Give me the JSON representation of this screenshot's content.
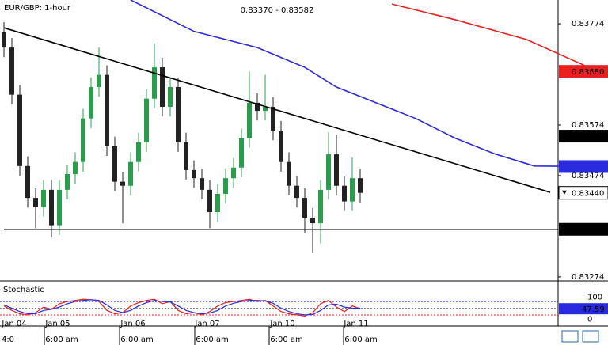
{
  "chart_data": {
    "type": "candlestick",
    "title": "EUR/GBP: 1-hour",
    "subtitle": "0.83370 - 0.83582",
    "ylim": [
      0.83266,
      0.83821
    ],
    "yticks": [
      0.83774,
      0.83574,
      0.83474,
      0.83274
    ],
    "up_color": "#2a9d4b",
    "down_color": "#222222",
    "candles": [
      [
        0.83758,
        0.83777,
        0.83708,
        0.83727
      ],
      [
        0.83727,
        0.83746,
        0.83615,
        0.83634
      ],
      [
        0.83634,
        0.83653,
        0.83474,
        0.83493
      ],
      [
        0.83493,
        0.83512,
        0.83411,
        0.8343
      ],
      [
        0.8343,
        0.83449,
        0.8337,
        0.83412
      ],
      [
        0.83412,
        0.83465,
        0.83393,
        0.83446
      ],
      [
        0.83446,
        0.83465,
        0.83352,
        0.83376
      ],
      [
        0.83376,
        0.83465,
        0.83357,
        0.83446
      ],
      [
        0.83446,
        0.83496,
        0.83427,
        0.83477
      ],
      [
        0.83477,
        0.8352,
        0.83458,
        0.83501
      ],
      [
        0.83501,
        0.83606,
        0.83482,
        0.83587
      ],
      [
        0.83587,
        0.83668,
        0.83568,
        0.83649
      ],
      [
        0.83649,
        0.83727,
        0.8363,
        0.83673
      ],
      [
        0.83673,
        0.83692,
        0.83513,
        0.83532
      ],
      [
        0.83532,
        0.83551,
        0.83443,
        0.83462
      ],
      [
        0.83462,
        0.83481,
        0.8338,
        0.83454
      ],
      [
        0.83454,
        0.8352,
        0.83435,
        0.83501
      ],
      [
        0.83501,
        0.83559,
        0.83482,
        0.8354
      ],
      [
        0.8354,
        0.83645,
        0.83521,
        0.83626
      ],
      [
        0.83626,
        0.83735,
        0.83607,
        0.83688
      ],
      [
        0.83688,
        0.83707,
        0.83591,
        0.8361
      ],
      [
        0.8361,
        0.83668,
        0.83591,
        0.83649
      ],
      [
        0.83649,
        0.83668,
        0.83521,
        0.8354
      ],
      [
        0.8354,
        0.83559,
        0.83466,
        0.83485
      ],
      [
        0.83485,
        0.83504,
        0.8345,
        0.83469
      ],
      [
        0.83469,
        0.83488,
        0.83427,
        0.83446
      ],
      [
        0.83446,
        0.83465,
        0.8337,
        0.83402
      ],
      [
        0.83402,
        0.83457,
        0.83383,
        0.83438
      ],
      [
        0.83438,
        0.83488,
        0.83419,
        0.83469
      ],
      [
        0.83469,
        0.83509,
        0.8345,
        0.8349
      ],
      [
        0.8349,
        0.83567,
        0.83471,
        0.83548
      ],
      [
        0.83548,
        0.8368,
        0.83529,
        0.83618
      ],
      [
        0.83618,
        0.83637,
        0.83583,
        0.83602
      ],
      [
        0.83602,
        0.83673,
        0.83583,
        0.8361
      ],
      [
        0.8361,
        0.83629,
        0.83544,
        0.83563
      ],
      [
        0.83563,
        0.83582,
        0.83482,
        0.83501
      ],
      [
        0.83501,
        0.8352,
        0.83435,
        0.83454
      ],
      [
        0.83454,
        0.83473,
        0.83411,
        0.8343
      ],
      [
        0.8343,
        0.83449,
        0.8336,
        0.83391
      ],
      [
        0.83391,
        0.8341,
        0.83321,
        0.8338
      ],
      [
        0.8338,
        0.83465,
        0.8334,
        0.83446
      ],
      [
        0.83446,
        0.8356,
        0.83427,
        0.83516
      ],
      [
        0.83516,
        0.83555,
        0.83435,
        0.83454
      ],
      [
        0.83454,
        0.83473,
        0.83404,
        0.83423
      ],
      [
        0.83423,
        0.8351,
        0.83404,
        0.83469
      ],
      [
        0.83469,
        0.83488,
        0.83421,
        0.8344
      ]
    ],
    "lines": [
      {
        "color": "#2a2adf",
        "x": [
          16,
          24,
          32,
          38,
          42,
          47,
          52,
          57,
          62,
          67,
          75
        ],
        "values": [
          0.83821,
          0.83759,
          0.83727,
          0.83688,
          0.83649,
          0.83618,
          0.83587,
          0.83548,
          0.83517,
          0.83493,
          0.83492
        ]
      },
      {
        "color": "#e82020",
        "x": [
          49,
          57,
          66,
          75
        ],
        "values": [
          0.83813,
          0.83782,
          0.83743,
          0.8368
        ]
      },
      {
        "color": "#000000",
        "x": [
          0,
          69
        ],
        "values": [
          0.83766,
          0.83441
        ]
      },
      {
        "color": "#000000",
        "x": [
          0,
          70
        ],
        "values": [
          0.83368,
          0.83368
        ]
      }
    ],
    "price_labels": [
      {
        "value": 0.8368,
        "label": "0.83680",
        "color": "#e82020"
      },
      {
        "value": 0.83552,
        "color": "#000000"
      },
      {
        "value": 0.83492,
        "color": "#2a2adf"
      },
      {
        "value": 0.8344,
        "label": "0.83440",
        "color": "#ffffff"
      },
      {
        "value": 0.83368,
        "color": "#000000"
      }
    ],
    "stochastic": {
      "title": "Stochastic",
      "ylim": [
        -30,
        155
      ],
      "yticks": [
        100,
        0
      ],
      "levels": [
        80,
        50,
        20
      ],
      "current": 47.59,
      "series": [
        {
          "color": "#e82020",
          "values": [
            60,
            40,
            25,
            20,
            30,
            55,
            45,
            70,
            80,
            85,
            90,
            88,
            80,
            40,
            25,
            30,
            60,
            75,
            85,
            90,
            70,
            80,
            40,
            25,
            30,
            20,
            35,
            60,
            75,
            80,
            85,
            90,
            80,
            85,
            60,
            35,
            25,
            20,
            15,
            30,
            70,
            85,
            55,
            35,
            60,
            47.59
          ]
        },
        {
          "color": "#2a2adf",
          "values": [
            65,
            50,
            35,
            25,
            25,
            40,
            45,
            55,
            70,
            80,
            85,
            88,
            85,
            65,
            40,
            30,
            40,
            60,
            75,
            85,
            80,
            78,
            60,
            40,
            30,
            25,
            28,
            40,
            60,
            72,
            80,
            85,
            85,
            82,
            72,
            50,
            35,
            25,
            20,
            22,
            40,
            65,
            68,
            55,
            50,
            50
          ]
        }
      ]
    },
    "date_labels": [
      "Jan 04",
      "Jan 05",
      "Jan 06",
      "Jan 07",
      "Jan 10",
      "Jan 11"
    ],
    "time_labels": [
      "4:0",
      "6:00 am",
      "6:00 am",
      "6:00 am",
      "6:00 am",
      "6:00 am"
    ]
  }
}
